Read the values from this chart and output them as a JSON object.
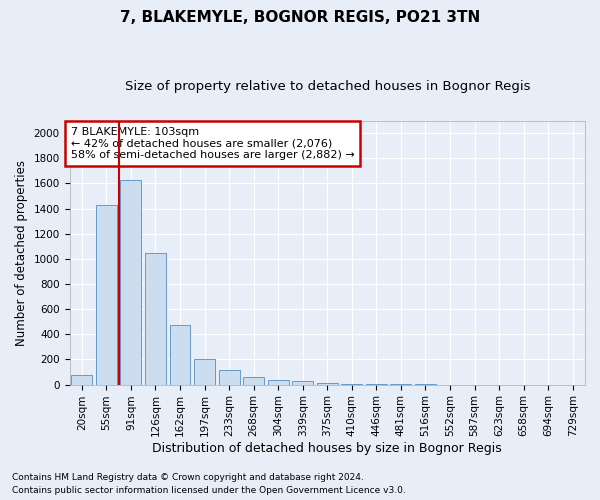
{
  "title": "7, BLAKEMYLE, BOGNOR REGIS, PO21 3TN",
  "subtitle": "Size of property relative to detached houses in Bognor Regis",
  "xlabel": "Distribution of detached houses by size in Bognor Regis",
  "ylabel": "Number of detached properties",
  "bar_color": "#ccddf0",
  "bar_edge_color": "#6699cc",
  "background_color": "#e8eef8",
  "plot_bg_color": "#e8eef8",
  "grid_color": "#ffffff",
  "categories": [
    "20sqm",
    "55sqm",
    "91sqm",
    "126sqm",
    "162sqm",
    "197sqm",
    "233sqm",
    "268sqm",
    "304sqm",
    "339sqm",
    "375sqm",
    "410sqm",
    "446sqm",
    "481sqm",
    "516sqm",
    "552sqm",
    "587sqm",
    "623sqm",
    "658sqm",
    "694sqm",
    "729sqm"
  ],
  "values": [
    75,
    1425,
    1625,
    1050,
    475,
    200,
    115,
    60,
    40,
    25,
    10,
    5,
    2,
    1,
    1,
    0,
    0,
    0,
    0,
    0,
    0
  ],
  "ylim": [
    0,
    2100
  ],
  "yticks": [
    0,
    200,
    400,
    600,
    800,
    1000,
    1200,
    1400,
    1600,
    1800,
    2000
  ],
  "vline_index": 1.5,
  "vline_color": "#cc0000",
  "annotation_text": "7 BLAKEMYLE: 103sqm\n← 42% of detached houses are smaller (2,076)\n58% of semi-detached houses are larger (2,882) →",
  "annotation_box_color": "#ffffff",
  "annotation_box_edge_color": "#cc0000",
  "footer_line1": "Contains HM Land Registry data © Crown copyright and database right 2024.",
  "footer_line2": "Contains public sector information licensed under the Open Government Licence v3.0.",
  "title_fontsize": 11,
  "subtitle_fontsize": 9.5,
  "xlabel_fontsize": 9,
  "ylabel_fontsize": 8.5,
  "tick_fontsize": 7.5,
  "footer_fontsize": 6.5,
  "ann_fontsize": 8
}
